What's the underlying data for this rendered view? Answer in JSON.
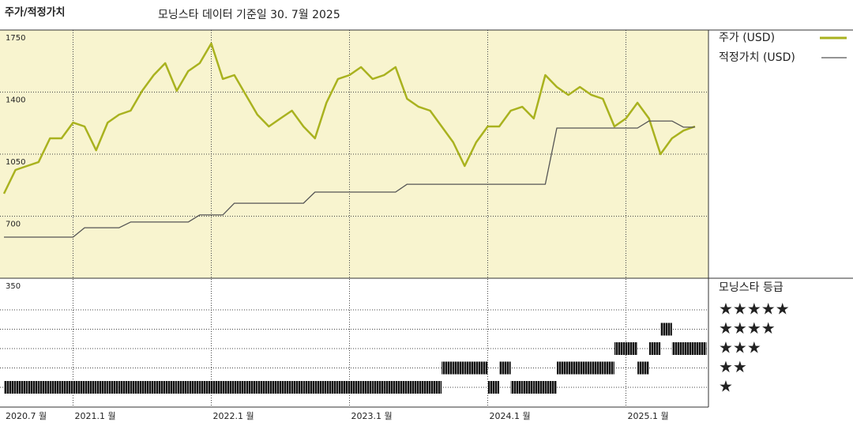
{
  "chart_data": {
    "type": "line",
    "title": "주가/적정가치",
    "subtitle": "모닝스타 데이터 기준일 30. 7월 2025",
    "x": [
      "2020-07",
      "2020-08",
      "2020-09",
      "2020-10",
      "2020-11",
      "2020-12",
      "2021-01",
      "2021-02",
      "2021-03",
      "2021-04",
      "2021-05",
      "2021-06",
      "2021-07",
      "2021-08",
      "2021-09",
      "2021-10",
      "2021-11",
      "2021-12",
      "2022-01",
      "2022-02",
      "2022-03",
      "2022-04",
      "2022-05",
      "2022-06",
      "2022-07",
      "2022-08",
      "2022-09",
      "2022-10",
      "2022-11",
      "2022-12",
      "2023-01",
      "2023-02",
      "2023-03",
      "2023-04",
      "2023-05",
      "2023-06",
      "2023-07",
      "2023-08",
      "2023-09",
      "2023-10",
      "2023-11",
      "2023-12",
      "2024-01",
      "2024-02",
      "2024-03",
      "2024-04",
      "2024-05",
      "2024-06",
      "2024-07",
      "2024-08",
      "2024-09",
      "2024-10",
      "2024-11",
      "2024-12",
      "2025-01",
      "2025-02",
      "2025-03",
      "2025-04",
      "2025-05",
      "2025-06",
      "2025-07"
    ],
    "series": [
      {
        "name": "주가 (USD)",
        "color": "#a9b21f",
        "values": [
          827,
          961,
          983,
          1005,
          1139,
          1139,
          1228,
          1206,
          1072,
          1228,
          1273,
          1295,
          1407,
          1496,
          1563,
          1407,
          1518,
          1563,
          1674,
          1474,
          1496,
          1384,
          1273,
          1206,
          1251,
          1295,
          1206,
          1139,
          1340,
          1474,
          1496,
          1541,
          1474,
          1496,
          1541,
          1362,
          1317,
          1295,
          1206,
          1117,
          983,
          1117,
          1206,
          1206,
          1295,
          1317,
          1251,
          1496,
          1429,
          1384,
          1429,
          1384,
          1362,
          1206,
          1251,
          1340,
          1251,
          1050,
          1139,
          1183,
          1206
        ]
      },
      {
        "name": "적정가치 (USD)",
        "color": "#555555",
        "values": [
          582,
          582,
          582,
          582,
          582,
          582,
          582,
          635,
          635,
          635,
          635,
          667,
          667,
          667,
          667,
          667,
          667,
          707,
          707,
          707,
          773,
          773,
          773,
          773,
          773,
          773,
          773,
          836,
          836,
          836,
          836,
          836,
          836,
          836,
          836,
          880,
          880,
          880,
          880,
          880,
          880,
          880,
          880,
          880,
          880,
          880,
          880,
          880,
          1197,
          1197,
          1197,
          1197,
          1197,
          1197,
          1197,
          1197,
          1237,
          1237,
          1237,
          1202,
          1202
        ]
      }
    ],
    "ylim": [
      350,
      1750
    ],
    "yticks": [
      350,
      700,
      1050,
      1400,
      1750
    ],
    "xticks": [
      {
        "value": "2020-07",
        "label": "2020.7 월"
      },
      {
        "value": "2021-01",
        "label": "2021.1 월"
      },
      {
        "value": "2022-01",
        "label": "2022.1 월"
      },
      {
        "value": "2023-01",
        "label": "2023.1 월"
      },
      {
        "value": "2024-01",
        "label": "2024.1 월"
      },
      {
        "value": "2025-01",
        "label": "2025.1 월"
      }
    ],
    "background": "#f8f4cf",
    "ratings": {
      "title": "모닝스타 등급",
      "levels": [
        5,
        4,
        3,
        2,
        1
      ],
      "labels": [
        "★★★★★",
        "★★★★",
        "★★★",
        "★★",
        "★"
      ],
      "values": [
        1,
        1,
        1,
        1,
        1,
        1,
        1,
        1,
        1,
        1,
        1,
        1,
        1,
        1,
        1,
        1,
        1,
        1,
        1,
        1,
        1,
        1,
        1,
        1,
        1,
        1,
        1,
        1,
        1,
        1,
        1,
        1,
        1,
        1,
        1,
        1,
        1,
        1,
        2,
        2,
        2,
        2,
        1,
        2,
        1,
        1,
        1,
        1,
        2,
        2,
        2,
        2,
        2,
        3,
        3,
        2,
        3,
        4,
        3,
        3,
        3
      ]
    }
  }
}
